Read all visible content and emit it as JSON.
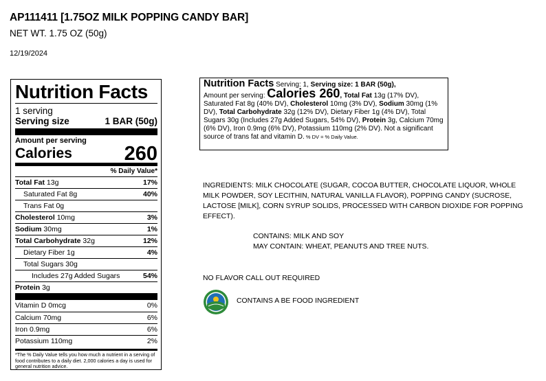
{
  "header": {
    "title": "AP111411 [1.75OZ MILK POPPING CANDY BAR]",
    "net_wt": "NET WT. 1.75 OZ (50g)",
    "date": "12/19/2024"
  },
  "nutrition": {
    "heading": "Nutrition Facts",
    "servings": "1 serving",
    "serving_size_label": "Serving size",
    "serving_size_value": "1 BAR (50g)",
    "amount_per_serving": "Amount per serving",
    "calories_label": "Calories",
    "calories_value": "260",
    "dv_header": "% Daily Value*",
    "rows": [
      {
        "label": "Total Fat",
        "amount": "13g",
        "dv": "17%"
      },
      {
        "label": "Saturated Fat",
        "amount": "8g",
        "dv": "40%"
      },
      {
        "label": "Trans Fat",
        "amount": "0g",
        "dv": ""
      },
      {
        "label": "Cholesterol",
        "amount": "10mg",
        "dv": "3%"
      },
      {
        "label": "Sodium",
        "amount": "30mg",
        "dv": "1%"
      },
      {
        "label": "Total Carbohydrate",
        "amount": "32g",
        "dv": "12%"
      },
      {
        "label": "Dietary Fiber",
        "amount": "1g",
        "dv": "4%"
      },
      {
        "label": "Total Sugars",
        "amount": "30g",
        "dv": ""
      },
      {
        "label": "Includes 27g Added Sugars",
        "amount": "",
        "dv": "54%"
      },
      {
        "label": "Protein",
        "amount": "3g",
        "dv": ""
      }
    ],
    "vitamins": [
      {
        "label": "Vitamin D 0mcg",
        "dv": "0%"
      },
      {
        "label": "Calcium 70mg",
        "dv": "6%"
      },
      {
        "label": "Iron 0.9mg",
        "dv": "6%"
      },
      {
        "label": "Potassium 110mg",
        "dv": "2%"
      }
    ],
    "footnote": "*The % Daily Value tells you how much a nutrient in a serving of food contributes to a daily diet. 2,000 calories a day is used for general nutrition advice."
  },
  "linear": {
    "heading": "Nutrition Facts",
    "servings_text": " Serving: 1, ",
    "size_label": "Serving size:",
    "size_value": " 1 BAR (50g),",
    "amount_label": "Amount per serving: ",
    "calories_label": "Calories",
    "calories_value": " 260",
    "total_fat_label": ", Total Fat",
    "total_fat_value": " 13g (17% DV), Saturated Fat 8g (40% DV), ",
    "cholesterol_label": "Cholesterol",
    "cholesterol_value": " 10mg (3% DV), ",
    "sodium_label": "Sodium",
    "sodium_value": " 30mg (1% DV), ",
    "carb_label": "Total Carbohydrate",
    "carb_value": " 32g (12% DV), Dietary Fiber 1g (4% DV), Total Sugars 30g (Includes 27g Added Sugars, 54% DV), ",
    "protein_label": "Protein",
    "protein_value": " 3g, Calcium 70mg (6% DV), Iron 0.9mg (6% DV), Potassium 110mg (2% DV). Not a significant source of trans fat and vitamin D.",
    "dv_note": " % DV = % Daily Value."
  },
  "ingredients": "INGREDIENTS: MILK CHOCOLATE (SUGAR, COCOA BUTTER, CHOCOLATE LIQUOR, WHOLE MILK POWDER, SOY LECITHIN, NATURAL VANILLA FLAVOR), POPPING CANDY (SUCROSE, LACTOSE [MILK], CORN SYRUP SOLIDS, PROCESSED WITH CARBON DIOXIDE FOR POPPING EFFECT).",
  "contains": "CONTAINS: MILK AND SOY",
  "may_contain": "MAY CONTAIN: WHEAT, PEANUTS AND TREE NUTS.",
  "no_flavor": "NO FLAVOR CALL OUT REQUIRED",
  "be_text": "CONTAINS A BE FOOD INGREDIENT",
  "be_logo_icon": "bioengineered-seal-icon",
  "colors": {
    "be_green": "#2e8b3a",
    "be_blue": "#1f6fb5",
    "be_yellow": "#f2c21b"
  }
}
